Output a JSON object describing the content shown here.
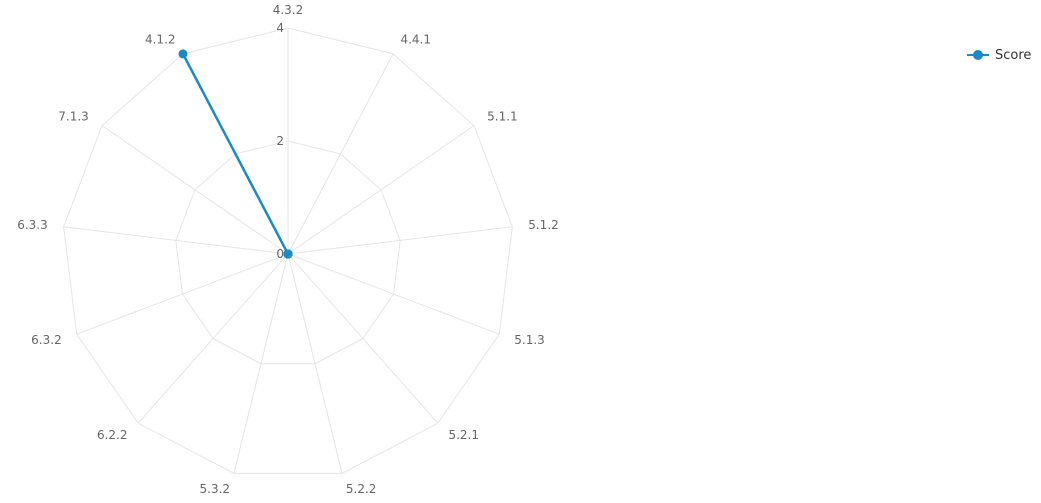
{
  "chart_data": {
    "type": "radar",
    "categories": [
      "4.3.2",
      "4.4.1",
      "5.1.1",
      "5.1.2",
      "5.1.3",
      "5.2.1",
      "5.2.2",
      "5.3.2",
      "6.2.2",
      "6.3.2",
      "6.3.3",
      "7.1.3",
      "4.1.2"
    ],
    "series": [
      {
        "name": "Score",
        "values": [
          0,
          0,
          0,
          0,
          0,
          0,
          0,
          0,
          0,
          0,
          0,
          0,
          4
        ]
      }
    ],
    "rlim": [
      0,
      4
    ],
    "radial_ticks": [
      0,
      2,
      4
    ],
    "grid": true,
    "legend": "top-right",
    "colors": {
      "series": "#1a8bc6",
      "grid": "#e6e6e6",
      "label": "#666666"
    }
  }
}
